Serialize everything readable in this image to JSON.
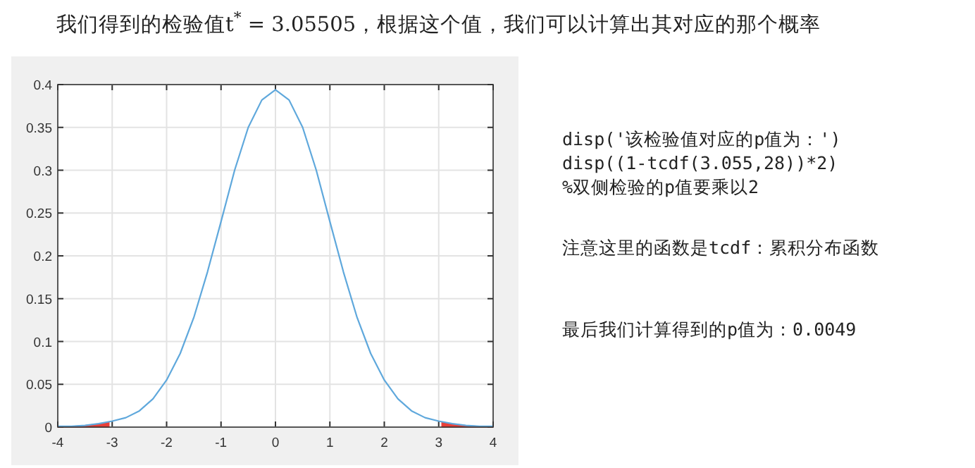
{
  "chart_data": {
    "type": "line",
    "title": "我们得到的检验值t$^{*}$ = 3.05505，根据这个值，我们可以计算出其对应的那个概率",
    "annotations": [
      "disp('该检验值对应的p值为：')",
      "disp((1-tcdf(3.055,28))*2)",
      "%双侧检验的p值要乘以2",
      "注意这里的函数是tcdf：累积分布函数",
      "最后我们计算得到的p值为：0.0049"
    ],
    "xlim": [
      -4,
      4
    ],
    "ylim": [
      0,
      0.4
    ],
    "xticks": [
      -4,
      -3,
      -2,
      -1,
      0,
      1,
      2,
      3,
      4
    ],
    "yticks": [
      0,
      0.05,
      0.1,
      0.15,
      0.2,
      0.25,
      0.3,
      0.35,
      0.4
    ],
    "grid": true,
    "series": [
      {
        "color": "#5fa8dc",
        "x": [
          -4,
          -3.75,
          -3.5,
          -3.25,
          -3,
          -2.75,
          -2.5,
          -2.25,
          -2,
          -1.75,
          -1.5,
          -1.25,
          -1,
          -0.75,
          -0.5,
          -0.25,
          0,
          0.25,
          0.5,
          0.75,
          1,
          1.25,
          1.5,
          1.75,
          2,
          2.25,
          2.5,
          2.75,
          3,
          3.25,
          3.5,
          3.75,
          4
        ],
        "values": [
          0.001,
          0.001,
          0.002,
          0.004,
          0.007,
          0.011,
          0.019,
          0.033,
          0.055,
          0.086,
          0.128,
          0.181,
          0.24,
          0.3,
          0.35,
          0.382,
          0.394,
          0.382,
          0.35,
          0.3,
          0.24,
          0.181,
          0.128,
          0.086,
          0.055,
          0.033,
          0.019,
          0.011,
          0.007,
          0.004,
          0.002,
          0.001,
          0.001
        ]
      },
      {
        "type": "area",
        "color": "#e8403a",
        "x": [
          -4,
          -3.75,
          -3.5,
          -3.25,
          -3.055
        ],
        "values": [
          0.001,
          0.001,
          0.002,
          0.004,
          0.006
        ]
      },
      {
        "type": "area",
        "color": "#e8403a",
        "x": [
          3.055,
          3.25,
          3.5,
          3.75,
          4
        ],
        "values": [
          0.006,
          0.004,
          0.002,
          0.001,
          0.001
        ]
      }
    ]
  }
}
